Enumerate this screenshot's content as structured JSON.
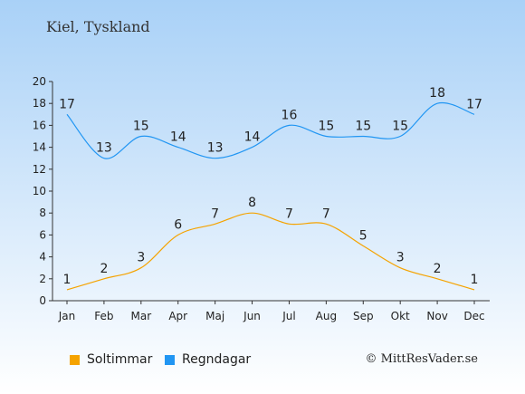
{
  "title": "Kiel, Tyskland",
  "credit": "© MittResVader.se",
  "colors": {
    "sun": "#f5a300",
    "rain": "#2196f3",
    "bg_top": "#a9d1f7",
    "bg_bottom": "#ffffff"
  },
  "chart_data": {
    "type": "line",
    "categories": [
      "Jan",
      "Feb",
      "Mar",
      "Apr",
      "Maj",
      "Jun",
      "Jul",
      "Aug",
      "Sep",
      "Okt",
      "Nov",
      "Dec"
    ],
    "series": [
      {
        "name": "Soltimmar",
        "values": [
          1,
          2,
          3,
          6,
          7,
          8,
          7,
          7,
          5,
          3,
          2,
          1
        ]
      },
      {
        "name": "Regndagar",
        "values": [
          17,
          13,
          15,
          14,
          13,
          14,
          16,
          15,
          15,
          15,
          18,
          17
        ]
      }
    ],
    "ylim": [
      0,
      20
    ],
    "yticks": [
      0,
      2,
      4,
      6,
      8,
      10,
      12,
      14,
      16,
      18,
      20
    ],
    "grid": false,
    "legend": "bottom"
  }
}
